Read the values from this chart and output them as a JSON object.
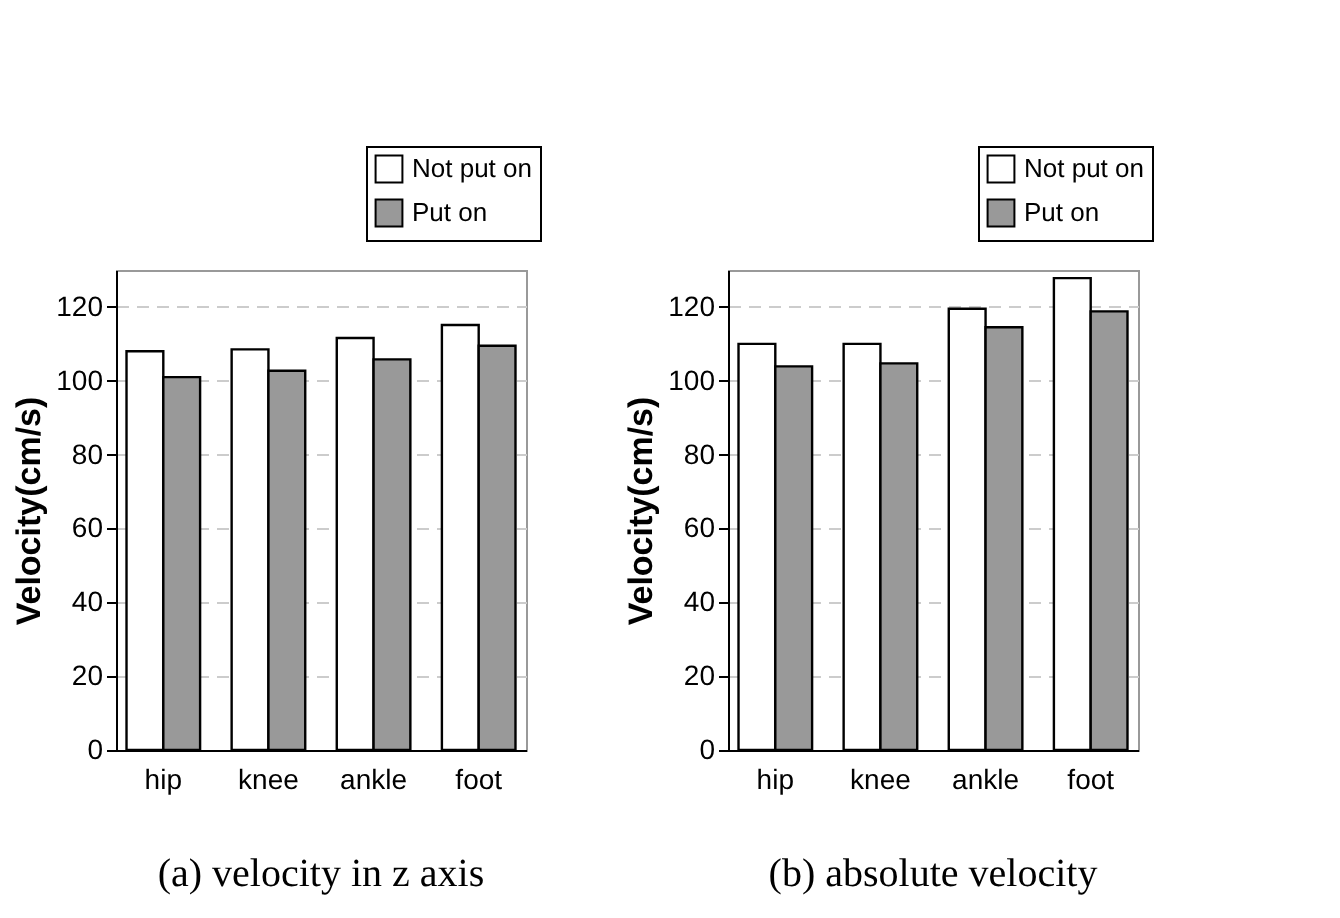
{
  "chart_data": [
    {
      "type": "bar",
      "categories": [
        "hip",
        "knee",
        "ankle",
        "foot"
      ],
      "ylabel": "Velocity(cm/s)",
      "ylim": [
        0,
        130
      ],
      "yticks": [
        0,
        20,
        40,
        60,
        80,
        100,
        120
      ],
      "grid": "y",
      "legend": "top right",
      "annotations": [
        "(a) velocity in z axis"
      ],
      "series": [
        {
          "name": "Not put on",
          "color": "#ffffff",
          "values": [
            108,
            108.5,
            111.6,
            115.1
          ]
        },
        {
          "name": "Put on",
          "color": "#999999",
          "values": [
            101,
            102.7,
            105.8,
            109.5
          ]
        }
      ]
    },
    {
      "type": "bar",
      "categories": [
        "hip",
        "knee",
        "ankle",
        "foot"
      ],
      "ylabel": "Velocity(cm/s)",
      "ylim": [
        0,
        130
      ],
      "yticks": [
        0,
        20,
        40,
        60,
        80,
        100,
        120
      ],
      "grid": "y",
      "legend": "top right",
      "annotations": [
        "(b) absolute velocity"
      ],
      "series": [
        {
          "name": "Not put on",
          "color": "#ffffff",
          "values": [
            110,
            110,
            119.5,
            127.8
          ]
        },
        {
          "name": "Put on",
          "color": "#999999",
          "values": [
            103.9,
            104.7,
            114.5,
            118.8
          ]
        }
      ]
    }
  ]
}
